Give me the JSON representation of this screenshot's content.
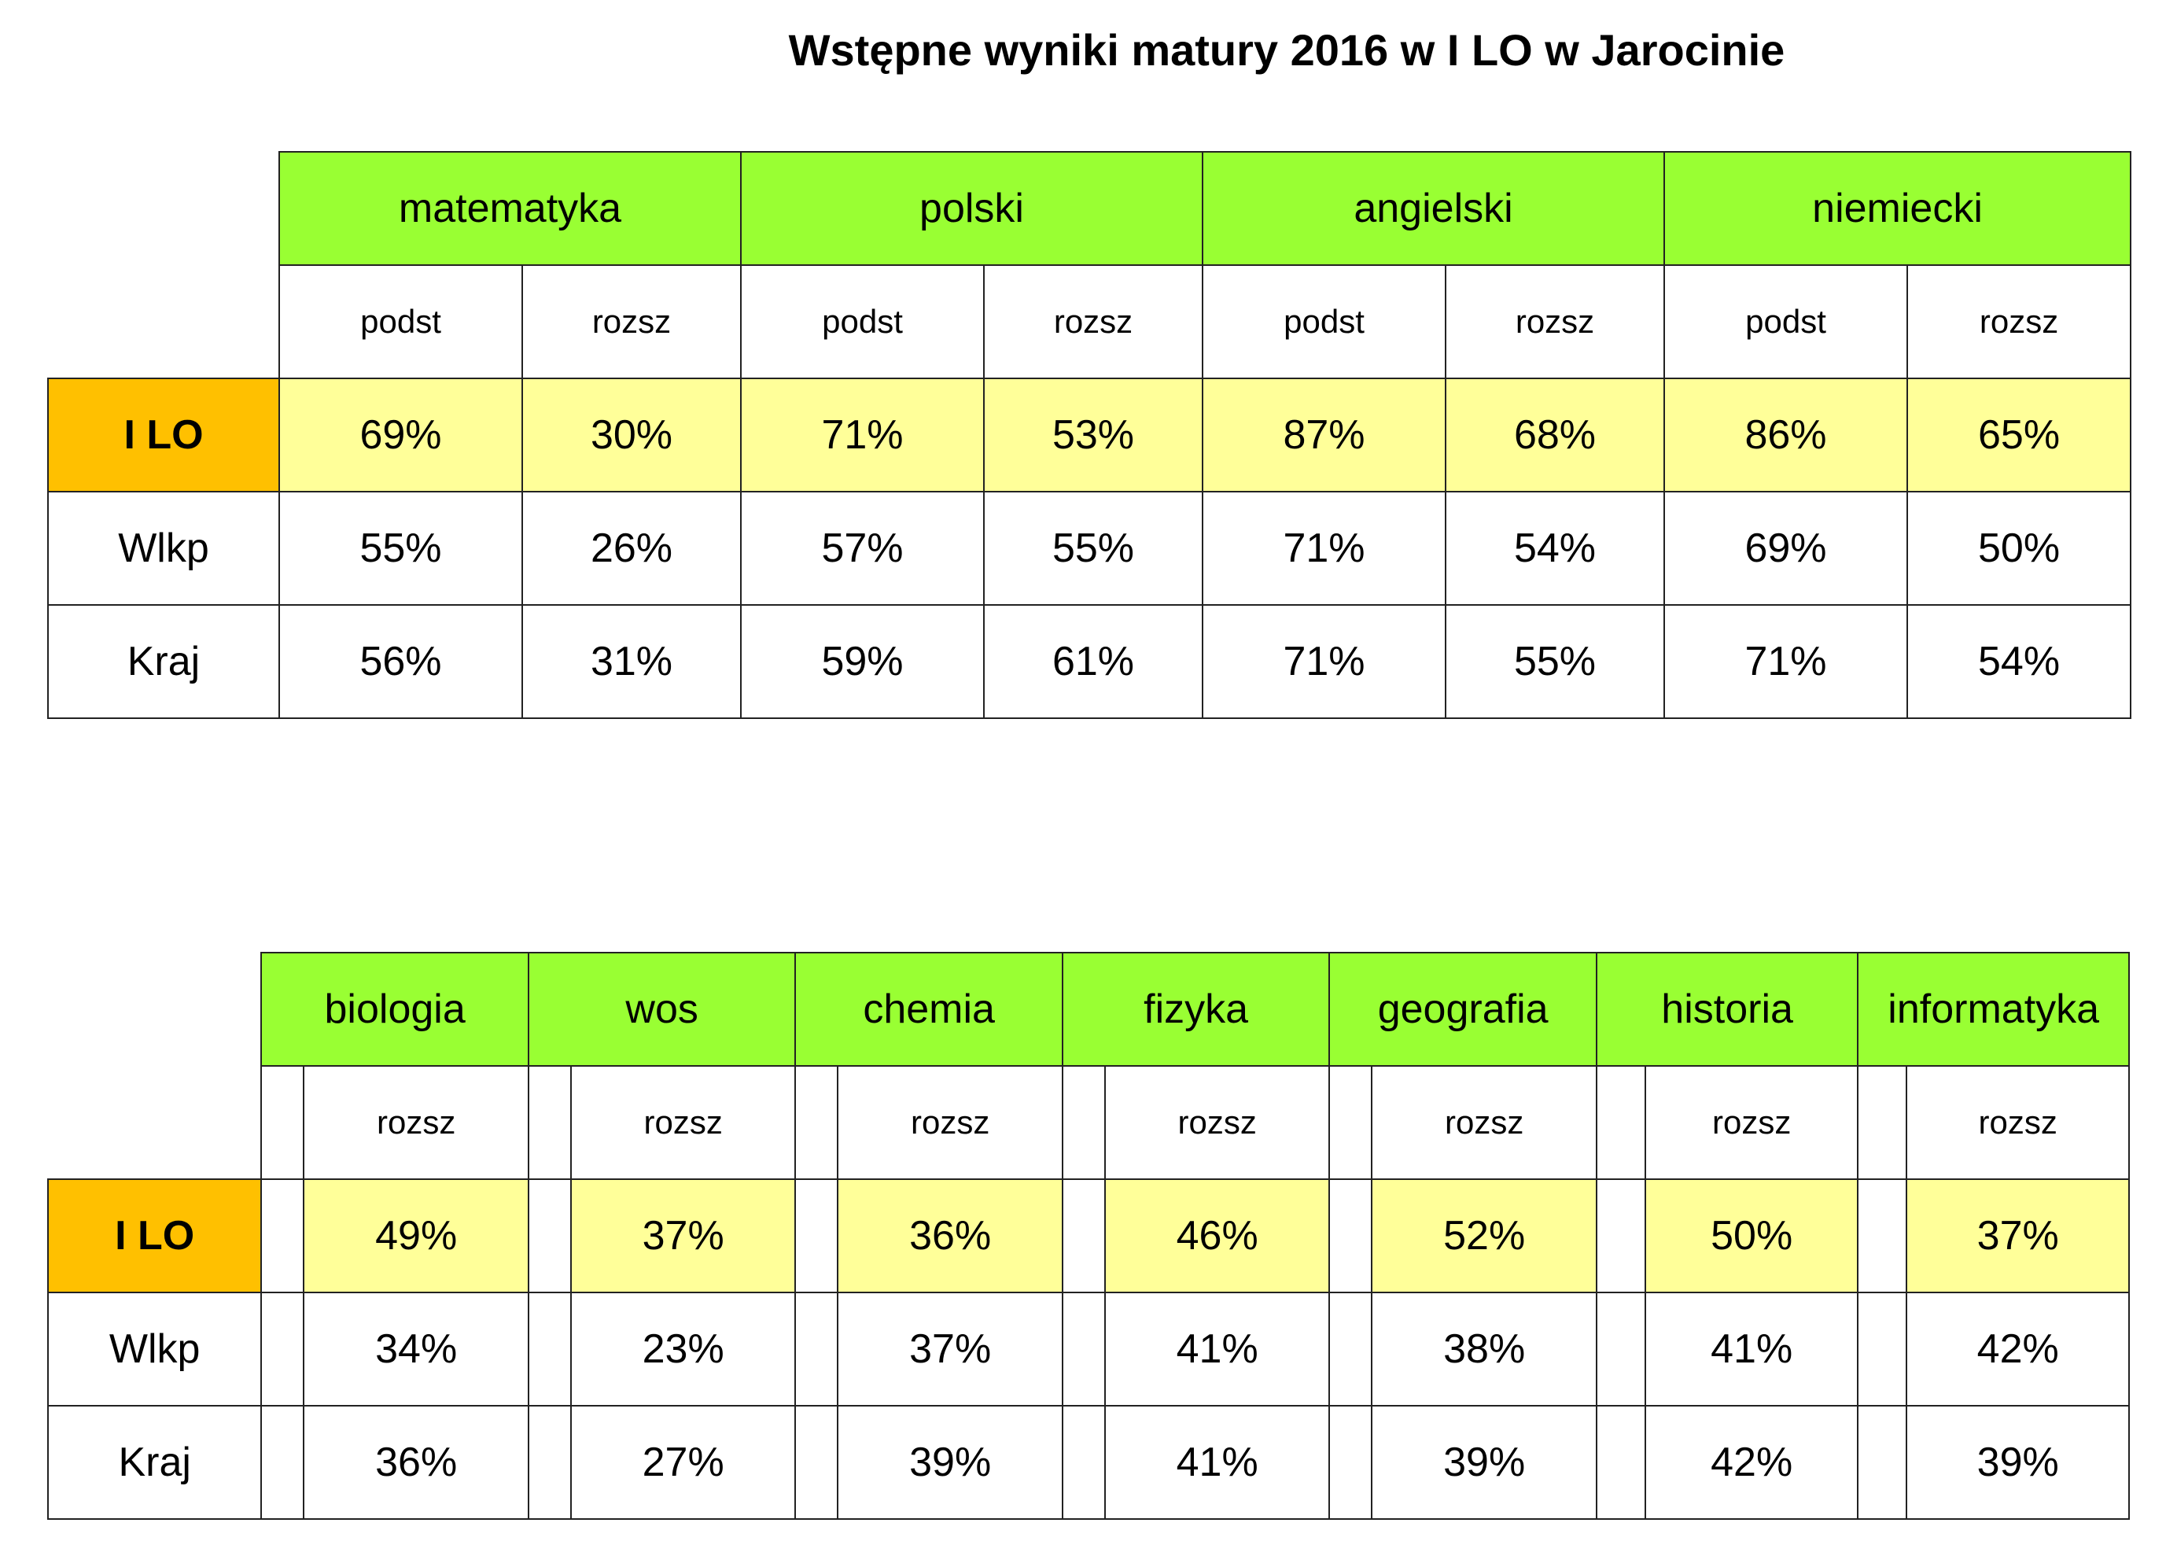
{
  "title": "Wstępne wyniki matury 2016 w I LO w Jarocinie",
  "colors": {
    "subject_header": "#99ff33",
    "school_label": "#ffc000",
    "school_values": "#ffff99"
  },
  "table1": {
    "subjects": [
      "matematyka",
      "polski",
      "angielski",
      "niemiecki"
    ],
    "levels": [
      "podst",
      "rozsz",
      "podst",
      "rozsz",
      "podst",
      "rozsz",
      "podst",
      "rozsz"
    ],
    "rows": [
      {
        "label": "I LO",
        "values": [
          "69%",
          "30%",
          "71%",
          "53%",
          "87%",
          "68%",
          "86%",
          "65%"
        ]
      },
      {
        "label": "Wlkp",
        "values": [
          "55%",
          "26%",
          "57%",
          "55%",
          "71%",
          "54%",
          "69%",
          "50%"
        ]
      },
      {
        "label": "Kraj",
        "values": [
          "56%",
          "31%",
          "59%",
          "61%",
          "71%",
          "55%",
          "71%",
          "54%"
        ]
      }
    ]
  },
  "table2": {
    "subjects": [
      "biologia",
      "wos",
      "chemia",
      "fizyka",
      "geografia",
      "historia",
      "informatyka"
    ],
    "levels": [
      "rozsz",
      "rozsz",
      "rozsz",
      "rozsz",
      "rozsz",
      "rozsz",
      "rozsz"
    ],
    "rows": [
      {
        "label": "I LO",
        "values": [
          "49%",
          "37%",
          "36%",
          "46%",
          "52%",
          "50%",
          "37%"
        ]
      },
      {
        "label": "Wlkp",
        "values": [
          "34%",
          "23%",
          "37%",
          "41%",
          "38%",
          "41%",
          "42%"
        ]
      },
      {
        "label": "Kraj",
        "values": [
          "36%",
          "27%",
          "39%",
          "41%",
          "39%",
          "42%",
          "39%"
        ]
      }
    ]
  }
}
